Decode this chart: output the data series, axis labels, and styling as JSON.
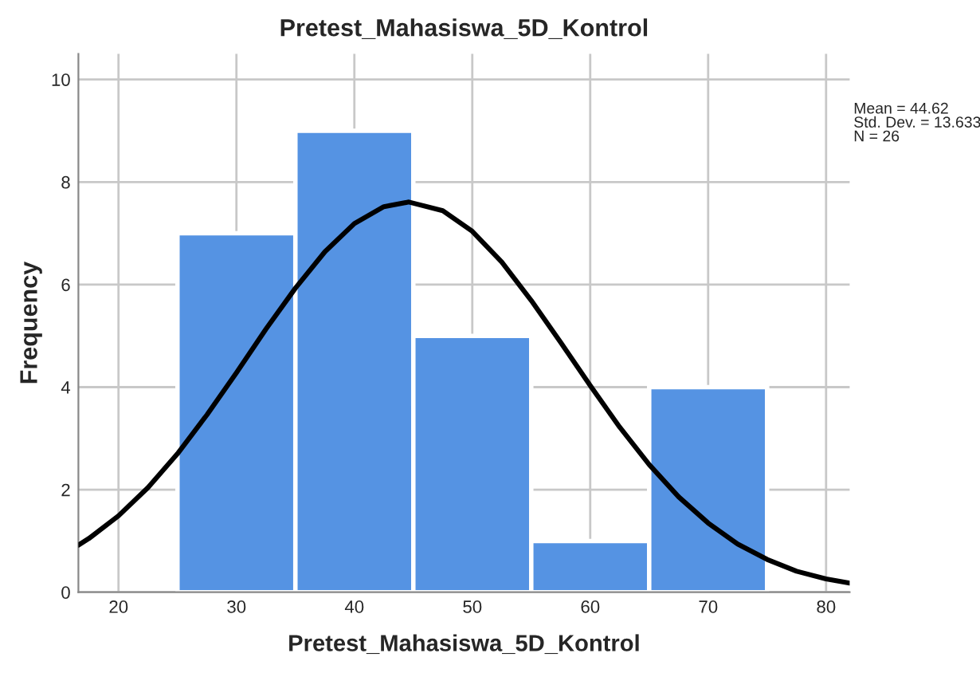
{
  "chart_data": {
    "type": "histogram",
    "title": "Pretest_Mahasiswa_5D_Kontrol",
    "xlabel": "Pretest_Mahasiswa_5D_Kontrol",
    "ylabel": "Frequency",
    "bins": [
      25,
      35,
      45,
      55,
      65,
      75
    ],
    "values": [
      7,
      9,
      5,
      1,
      4
    ],
    "color": "#5593e3",
    "series": [
      {
        "type": "line",
        "color": "#000000",
        "x": [
          16.6,
          17.5,
          20,
          22.5,
          25,
          27.5,
          30,
          32.5,
          35,
          37.5,
          40,
          42.5,
          44.62,
          47.5,
          50,
          52.5,
          55,
          57.5,
          60,
          62.5,
          65,
          67.5,
          70,
          72.5,
          75,
          77.5,
          80,
          82
        ],
        "values": [
          0.92,
          1.05,
          1.49,
          2.04,
          2.7,
          3.46,
          4.28,
          5.13,
          5.93,
          6.64,
          7.19,
          7.52,
          7.61,
          7.44,
          7.04,
          6.44,
          5.69,
          4.87,
          4.03,
          3.22,
          2.49,
          1.86,
          1.35,
          0.94,
          0.64,
          0.41,
          0.26,
          0.18
        ]
      }
    ],
    "xlim": [
      16.6,
      82
    ],
    "xticks": [
      20,
      30,
      40,
      50,
      60,
      70,
      80
    ],
    "ylim": [
      0,
      10.5
    ],
    "yticks": [
      0,
      2,
      4,
      6,
      8,
      10
    ],
    "grid": true,
    "legend": false,
    "annotations": [
      "Mean = 44.62",
      "Std. Dev. = 13.633",
      "N = 26"
    ]
  }
}
